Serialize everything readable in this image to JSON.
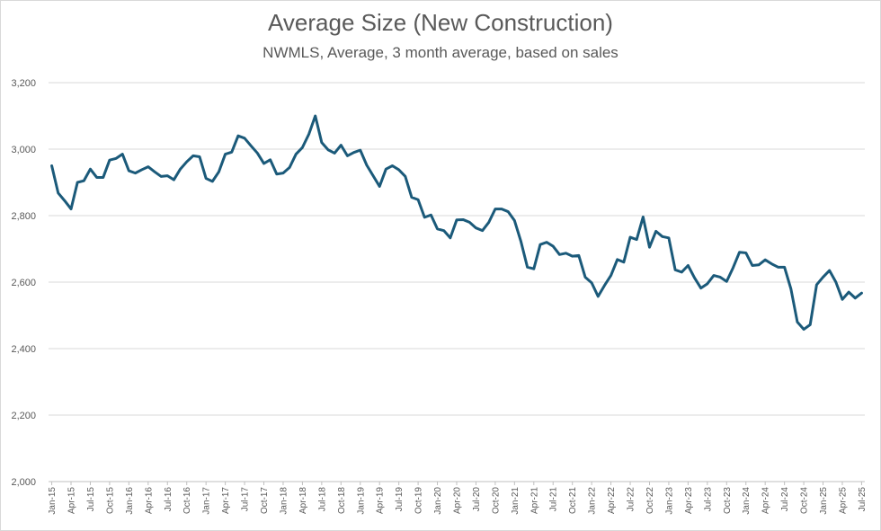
{
  "chart_data": {
    "type": "line",
    "title": "Average Size (New Construction)",
    "subtitle": "NWMLS, Average, 3 month average, based on sales",
    "xlabel": "",
    "ylabel": "",
    "ylim": [
      2000,
      3200
    ],
    "yticks": [
      "2,000",
      "2,200",
      "2,400",
      "2,600",
      "2,800",
      "3,000",
      "3,200"
    ],
    "ytick_values": [
      2000,
      2200,
      2400,
      2600,
      2800,
      3000,
      3200
    ],
    "grid": "horizontal",
    "legend": "none",
    "line_color": "#1b5a7a",
    "x_tick_labels": [
      "Jan-15",
      "Apr-15",
      "Jul-15",
      "Oct-15",
      "Jan-16",
      "Apr-16",
      "Jul-16",
      "Oct-16",
      "Jan-17",
      "Apr-17",
      "Jul-17",
      "Oct-17",
      "Jan-18",
      "Apr-18",
      "Jul-18",
      "Oct-18",
      "Jan-19",
      "Apr-19",
      "Jul-19",
      "Oct-19",
      "Jan-20",
      "Apr-20",
      "Jul-20",
      "Oct-20",
      "Jan-21",
      "Apr-21",
      "Jul-21",
      "Oct-21",
      "Jan-22",
      "Apr-22",
      "Jul-22",
      "Oct-22",
      "Jan-23",
      "Apr-23",
      "Jul-23",
      "Oct-23",
      "Jan-24",
      "Apr-24",
      "Jul-24",
      "Oct-24",
      "Jan-25",
      "Apr-25",
      "Jul-25"
    ],
    "x_tick_step_months": 3,
    "start_month": "Jan-15",
    "series": [
      {
        "values": [
          2950,
          2868,
          2845,
          2820,
          2900,
          2905,
          2940,
          2915,
          2915,
          2967,
          2972,
          2985,
          2935,
          2928,
          2938,
          2947,
          2932,
          2918,
          2920,
          2908,
          2940,
          2962,
          2980,
          2977,
          2912,
          2903,
          2932,
          2985,
          2991,
          3040,
          3033,
          3010,
          2988,
          2957,
          2968,
          2925,
          2928,
          2945,
          2985,
          3005,
          3045,
          3100,
          3020,
          2998,
          2988,
          3012,
          2980,
          2990,
          2997,
          2952,
          2920,
          2888,
          2940,
          2950,
          2938,
          2918,
          2855,
          2848,
          2795,
          2802,
          2760,
          2755,
          2733,
          2787,
          2788,
          2780,
          2763,
          2755,
          2780,
          2820,
          2820,
          2812,
          2785,
          2722,
          2645,
          2640,
          2713,
          2720,
          2708,
          2683,
          2687,
          2678,
          2680,
          2615,
          2598,
          2557,
          2590,
          2620,
          2668,
          2660,
          2735,
          2728,
          2796,
          2705,
          2753,
          2737,
          2733,
          2637,
          2630,
          2650,
          2613,
          2582,
          2595,
          2620,
          2615,
          2602,
          2643,
          2690,
          2688,
          2650,
          2652,
          2667,
          2655,
          2645,
          2645,
          2580,
          2480,
          2458,
          2472,
          2592,
          2615,
          2635,
          2600,
          2548,
          2570,
          2552,
          2567
        ]
      }
    ]
  }
}
